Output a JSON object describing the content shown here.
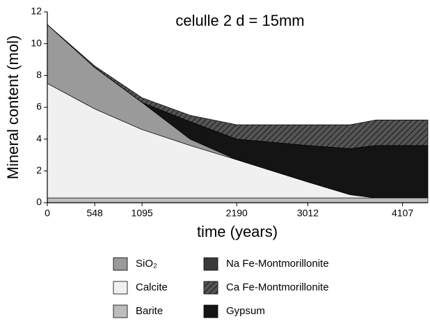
{
  "chart_data": {
    "type": "area",
    "stacked": true,
    "title": "celulle 2 d = 15mm",
    "x_label": "time (years)",
    "y_label": "Mineral content (mol)",
    "x": [
      0,
      548,
      1095,
      1650,
      2190,
      2600,
      3012,
      3500,
      3800,
      4107,
      4400
    ],
    "series": [
      {
        "name": "Barite",
        "color": "#bdbdbd",
        "values": [
          0.3,
          0.3,
          0.3,
          0.3,
          0.3,
          0.3,
          0.3,
          0.3,
          0.3,
          0.3,
          0.3
        ]
      },
      {
        "name": "Calcite",
        "color": "#f0f0f0",
        "values": [
          7.2,
          5.6,
          4.3,
          3.3,
          2.4,
          1.7,
          1.0,
          0.2,
          0,
          0,
          0
        ]
      },
      {
        "name": "SiO₂",
        "color": "#9a9a9a",
        "values": [
          3.7,
          2.6,
          1.7,
          0.4,
          0,
          0,
          0,
          0,
          0,
          0,
          0
        ]
      },
      {
        "name": "Gypsum",
        "color": "#141414",
        "values": [
          0,
          0,
          0,
          1.1,
          1.3,
          1.8,
          2.3,
          2.9,
          3.3,
          3.3,
          3.3
        ]
      },
      {
        "name": "Na Fe-Montmorillonite",
        "color": "#3a3a3a",
        "values": [
          0,
          0,
          0,
          0,
          0,
          0,
          0,
          0,
          0,
          0,
          0
        ]
      },
      {
        "name": "Ca Fe-Montmorillonite",
        "color": "#555555",
        "hatch": true,
        "values": [
          0,
          0.1,
          0.3,
          0.4,
          0.9,
          1.1,
          1.3,
          1.5,
          1.6,
          1.6,
          1.6
        ]
      }
    ],
    "legend_order": [
      2,
      4,
      1,
      5,
      0,
      3
    ],
    "xlim": [
      0,
      4400
    ],
    "xticks": [
      0,
      548,
      1095,
      2190,
      3012,
      4107
    ],
    "ylim": [
      0,
      12
    ],
    "yticks": [
      0,
      2,
      4,
      6,
      8,
      10,
      12
    ]
  }
}
